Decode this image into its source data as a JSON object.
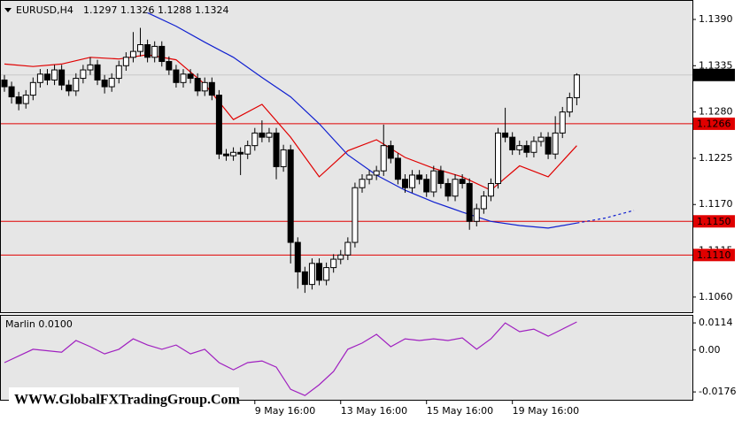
{
  "chart_data": [
    {
      "type": "candlestick",
      "title": "EURUSD,H4",
      "categories": [
        null,
        null,
        null,
        null,
        null,
        null,
        null,
        null,
        null,
        null,
        null,
        null,
        null,
        null,
        null,
        null,
        null,
        null,
        null,
        null,
        null,
        null,
        null,
        null,
        null,
        null,
        null,
        null,
        null,
        null,
        null,
        null,
        null,
        null,
        null,
        "9 May 16:00",
        null,
        null,
        null,
        null,
        null,
        null,
        null,
        null,
        null,
        null,
        null,
        "13 May 16:00",
        null,
        null,
        null,
        null,
        null,
        null,
        null,
        null,
        null,
        null,
        null,
        "15 May 16:00",
        null,
        null,
        null,
        null,
        null,
        null,
        null,
        null,
        null,
        null,
        null,
        "19 May 16:00",
        null,
        null,
        null,
        null,
        null,
        null,
        null,
        null,
        null
      ],
      "open": [
        1.1318,
        1.131,
        1.1298,
        1.129,
        1.13,
        1.1315,
        1.1325,
        1.1318,
        1.133,
        1.1312,
        1.1305,
        1.132,
        1.133,
        1.1336,
        1.1318,
        1.131,
        1.132,
        1.1335,
        1.1345,
        1.1352,
        1.136,
        1.1345,
        1.1358,
        1.134,
        1.133,
        1.1315,
        1.1325,
        1.132,
        1.1305,
        1.1315,
        1.13,
        1.123,
        1.1228,
        1.1232,
        1.123,
        1.124,
        1.1255,
        1.125,
        1.1255,
        1.1215,
        1.1235,
        1.1125,
        1.109,
        1.1075,
        1.11,
        1.108,
        1.1095,
        1.1105,
        1.111,
        1.1125,
        1.119,
        1.12,
        1.1205,
        1.121,
        1.124,
        1.1225,
        1.12,
        1.119,
        1.1205,
        1.12,
        1.1185,
        1.121,
        1.1195,
        1.118,
        1.12,
        1.1195,
        1.115,
        1.1165,
        1.118,
        1.1195,
        1.1255,
        1.125,
        1.1235,
        1.124,
        1.1232,
        1.1245,
        1.125,
        1.123,
        1.1255,
        1.128,
        1.1297
      ],
      "high": [
        1.1324,
        1.1316,
        1.1304,
        1.1306,
        1.1321,
        1.1331,
        1.1331,
        1.1336,
        1.1336,
        1.1318,
        1.1326,
        1.1336,
        1.1345,
        1.1342,
        1.1324,
        1.1326,
        1.1341,
        1.1351,
        1.1375,
        1.138,
        1.1366,
        1.1364,
        1.1364,
        1.1346,
        1.1336,
        1.1331,
        1.1331,
        1.1326,
        1.1321,
        1.1321,
        1.1306,
        1.1236,
        1.1238,
        1.1238,
        1.1246,
        1.1261,
        1.127,
        1.1261,
        1.1261,
        1.1241,
        1.1241,
        1.1131,
        1.1096,
        1.1106,
        1.1106,
        1.1101,
        1.1111,
        1.1116,
        1.1131,
        1.1196,
        1.1206,
        1.1211,
        1.1216,
        1.1265,
        1.1246,
        1.1231,
        1.1206,
        1.1211,
        1.1211,
        1.1206,
        1.1216,
        1.1216,
        1.1201,
        1.1206,
        1.1206,
        1.1201,
        1.1171,
        1.1186,
        1.1201,
        1.1261,
        1.1285,
        1.1256,
        1.1246,
        1.1246,
        1.1251,
        1.1256,
        1.1256,
        1.1275,
        1.1286,
        1.1303,
        1.1326
      ],
      "low": [
        1.1304,
        1.129,
        1.1282,
        1.1284,
        1.1294,
        1.1309,
        1.1312,
        1.1312,
        1.1306,
        1.1299,
        1.1299,
        1.1314,
        1.1324,
        1.1312,
        1.1302,
        1.1304,
        1.1314,
        1.1329,
        1.1339,
        1.1346,
        1.1339,
        1.1339,
        1.1334,
        1.1324,
        1.1309,
        1.1309,
        1.1314,
        1.1299,
        1.1299,
        1.1294,
        1.1224,
        1.1222,
        1.1222,
        1.1205,
        1.1224,
        1.1234,
        1.1244,
        1.1244,
        1.12,
        1.1209,
        1.11,
        1.107,
        1.1065,
        1.1069,
        1.1074,
        1.1074,
        1.1089,
        1.1099,
        1.1104,
        1.1119,
        1.1184,
        1.1194,
        1.1199,
        1.1204,
        1.1219,
        1.1194,
        1.1184,
        1.1184,
        1.1194,
        1.1179,
        1.1179,
        1.1189,
        1.1174,
        1.1174,
        1.1189,
        1.114,
        1.1144,
        1.1159,
        1.1174,
        1.1189,
        1.1244,
        1.1229,
        1.1229,
        1.1226,
        1.1226,
        1.1239,
        1.1224,
        1.1224,
        1.1249,
        1.1274,
        1.1288
      ],
      "close": [
        1.131,
        1.1298,
        1.129,
        1.13,
        1.1315,
        1.1325,
        1.1318,
        1.133,
        1.1312,
        1.1305,
        1.132,
        1.133,
        1.1336,
        1.1318,
        1.131,
        1.132,
        1.1335,
        1.1345,
        1.1352,
        1.136,
        1.1345,
        1.1358,
        1.134,
        1.133,
        1.1315,
        1.1325,
        1.132,
        1.1305,
        1.1315,
        1.13,
        1.123,
        1.1228,
        1.1232,
        1.123,
        1.124,
        1.1255,
        1.125,
        1.1255,
        1.1215,
        1.1235,
        1.1125,
        1.109,
        1.1075,
        1.11,
        1.108,
        1.1095,
        1.1105,
        1.111,
        1.1125,
        1.119,
        1.12,
        1.1205,
        1.121,
        1.124,
        1.1225,
        1.12,
        1.119,
        1.1205,
        1.12,
        1.1185,
        1.121,
        1.1195,
        1.118,
        1.12,
        1.1195,
        1.115,
        1.1165,
        1.118,
        1.1195,
        1.1255,
        1.125,
        1.1235,
        1.124,
        1.1232,
        1.1245,
        1.125,
        1.123,
        1.1255,
        1.128,
        1.1297,
        1.1324
      ],
      "ylim": [
        1.1042,
        1.1411
      ],
      "yticks": [
        {
          "value": 1.139,
          "label": "1.1390"
        },
        {
          "value": 1.1335,
          "label": "1.1335"
        },
        {
          "value": 1.128,
          "label": "1.1280"
        },
        {
          "value": 1.1225,
          "label": "1.1225"
        },
        {
          "value": 1.117,
          "label": "1.1170"
        },
        {
          "value": 1.1115,
          "label": "1.1115"
        },
        {
          "value": 1.106,
          "label": "1.1060"
        }
      ],
      "levels": [
        {
          "value": 1.1266,
          "label": "1.1266"
        },
        {
          "value": 1.115,
          "label": "1.1150"
        },
        {
          "value": 1.111,
          "label": "1.1110"
        }
      ],
      "level_color": "#e00000",
      "series": [
        {
          "color": "#e00000",
          "x": [
            0,
            4,
            8,
            12,
            16,
            20,
            24,
            28,
            32,
            36,
            40,
            44,
            48,
            52,
            56,
            60,
            64,
            68,
            72,
            76,
            80
          ],
          "values": [
            1.1337,
            1.1334,
            1.1337,
            1.1345,
            1.1343,
            1.1348,
            1.1342,
            1.1313,
            1.1271,
            1.1289,
            1.125,
            1.1203,
            1.1234,
            1.1247,
            1.1226,
            1.1213,
            1.1203,
            1.1187,
            1.1216,
            1.1203,
            1.124
          ]
        },
        {
          "color": "#1020d0",
          "x": [
            20,
            24,
            28,
            32,
            36,
            40,
            44,
            48,
            52,
            56,
            60,
            64,
            68,
            72,
            76,
            80
          ],
          "values": [
            1.1398,
            1.1382,
            1.1363,
            1.1345,
            1.1321,
            1.1298,
            1.1266,
            1.1229,
            1.1205,
            1.1187,
            1.1173,
            1.1161,
            1.115,
            1.1145,
            1.1142,
            1.1148
          ]
        },
        {
          "color": "#1020d0",
          "dashed": true,
          "x": [
            80,
            84,
            88
          ],
          "values": [
            1.1148,
            1.1154,
            1.1163
          ]
        }
      ]
    },
    {
      "type": "line",
      "title": "Marlin 0.0100",
      "color": "#a020c0",
      "x": [
        0,
        4,
        8,
        10,
        12,
        14,
        16,
        18,
        20,
        22,
        24,
        26,
        28,
        30,
        32,
        34,
        36,
        38,
        40,
        42,
        44,
        46,
        48,
        50,
        52,
        54,
        56,
        58,
        60,
        62,
        64,
        66,
        68,
        70,
        72,
        74,
        76,
        78,
        80
      ],
      "values": [
        -0.0053,
        0.0003,
        -0.0009,
        0.004,
        0.0014,
        -0.0016,
        0.0003,
        0.0047,
        0.0021,
        0.0003,
        0.0021,
        -0.0016,
        0.0003,
        -0.0053,
        -0.0083,
        -0.0053,
        -0.0046,
        -0.0072,
        -0.0165,
        -0.0191,
        -0.0146,
        -0.009,
        0.0003,
        0.0029,
        0.0066,
        0.0014,
        0.0047,
        0.004,
        0.0047,
        0.004,
        0.0051,
        0.0003,
        0.0047,
        0.0114,
        0.0077,
        0.0088,
        0.0058,
        0.0088,
        0.0118
      ],
      "ylim": [
        -0.0209,
        0.0144
      ],
      "yticks": [
        0.0114,
        {
          "value": 0,
          "label": "0.00"
        },
        -0.0176
      ]
    }
  ],
  "watermark": "WWW.GlobalFXTradingGroup.Com"
}
